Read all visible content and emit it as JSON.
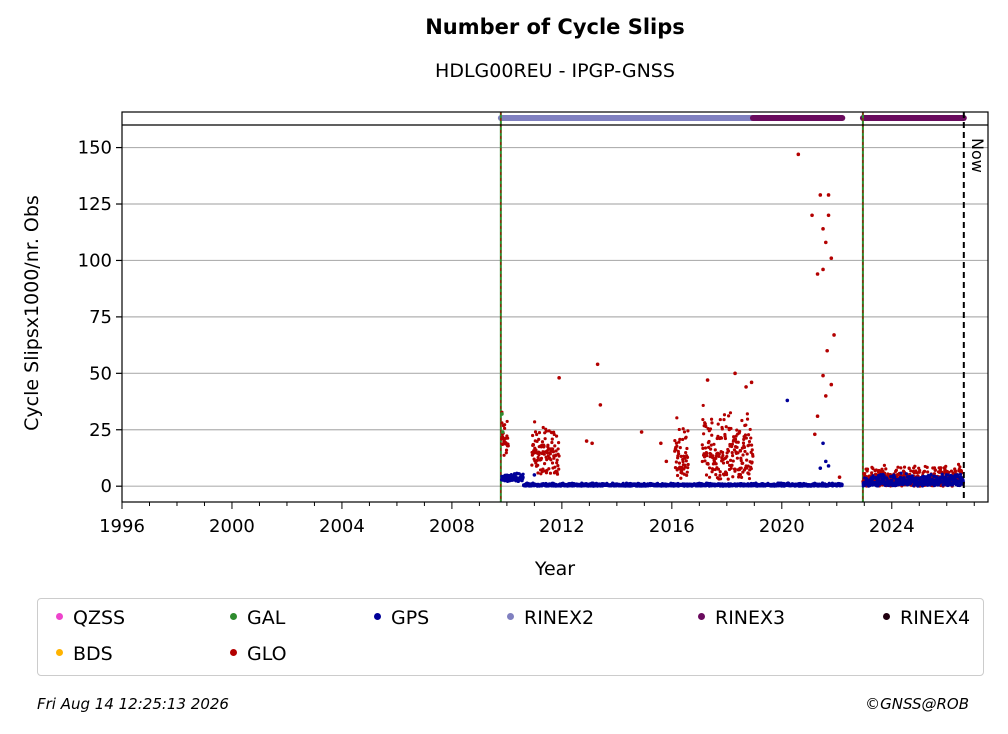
{
  "chart_data": {
    "type": "scatter",
    "title": "Number of Cycle Slips",
    "subtitle": "HDLG00REU - IPGP-GNSS",
    "xlabel": "Year",
    "ylabel": "Cycle Slipsx1000/nr. Obs",
    "xlim": [
      1996,
      2027.5
    ],
    "ylim": [
      -7,
      160
    ],
    "x_ticks": [
      1996,
      2000,
      2004,
      2008,
      2012,
      2016,
      2020,
      2024
    ],
    "y_ticks": [
      0,
      25,
      50,
      75,
      100,
      125,
      150
    ],
    "grid": "horizontal",
    "now_line": {
      "x": 2026.62,
      "label": "Now"
    },
    "event_lines": [
      2009.78,
      2022.95
    ],
    "rinex_bars": [
      {
        "name": "RINEX2",
        "from": 2009.78,
        "to": 2018.95
      },
      {
        "name": "RINEX3",
        "from": 2018.95,
        "to": 2022.2
      },
      {
        "name": "RINEX3",
        "from": 2022.95,
        "to": 2026.62
      }
    ],
    "colors": {
      "QZSS": "#ee44cc",
      "BDS": "#ffb300",
      "GAL": "#2e8b2e",
      "GLO": "#b30000",
      "GPS": "#000099",
      "RINEX2": "#8080c0",
      "RINEX3": "#6a0b5e",
      "RINEX4": "#200010"
    },
    "series": [
      {
        "name": "GLO",
        "segments": [
          {
            "from": 2009.8,
            "to": 2010.05,
            "low": 12,
            "high": 42
          },
          {
            "from": 2010.9,
            "to": 2011.9,
            "low": 5,
            "high": 33
          },
          {
            "from": 2016.1,
            "to": 2016.6,
            "low": 3,
            "high": 32
          },
          {
            "from": 2017.1,
            "to": 2018.95,
            "low": 3,
            "high": 37
          },
          {
            "from": 2022.95,
            "to": 2026.6,
            "low": 0,
            "high": 10
          }
        ],
        "outliers": [
          [
            2011.9,
            48
          ],
          [
            2013.3,
            54
          ],
          [
            2013.4,
            36
          ],
          [
            2012.9,
            20
          ],
          [
            2013.1,
            19
          ],
          [
            2014.9,
            24
          ],
          [
            2015.6,
            19
          ],
          [
            2015.8,
            11
          ],
          [
            2017.3,
            47
          ],
          [
            2018.3,
            50
          ],
          [
            2018.7,
            44
          ],
          [
            2018.9,
            46
          ],
          [
            2020.6,
            147
          ],
          [
            2021.1,
            120
          ],
          [
            2021.3,
            94
          ],
          [
            2021.4,
            129
          ],
          [
            2021.5,
            114
          ],
          [
            2021.5,
            96
          ],
          [
            2021.6,
            108
          ],
          [
            2021.7,
            129
          ],
          [
            2021.7,
            120
          ],
          [
            2021.8,
            101
          ],
          [
            2021.9,
            67
          ],
          [
            2021.5,
            49
          ],
          [
            2021.6,
            40
          ],
          [
            2021.65,
            60
          ],
          [
            2021.3,
            31
          ],
          [
            2021.8,
            45
          ],
          [
            2021.2,
            23
          ],
          [
            2022.1,
            4
          ]
        ]
      },
      {
        "name": "GPS",
        "segments": [
          {
            "from": 2009.8,
            "to": 2010.6,
            "low": 2,
            "high": 6
          },
          {
            "from": 2010.6,
            "to": 2022.2,
            "low": 0,
            "high": 1.5
          },
          {
            "from": 2022.95,
            "to": 2026.6,
            "low": 0,
            "high": 6
          }
        ],
        "outliers": [
          [
            2020.2,
            38
          ],
          [
            2021.5,
            19
          ],
          [
            2021.6,
            11
          ],
          [
            2021.7,
            9
          ],
          [
            2021.4,
            8
          ],
          [
            2011.0,
            5
          ]
        ]
      },
      {
        "name": "GAL",
        "segments": [],
        "outliers": [
          [
            2009.82,
            32
          ],
          [
            2009.85,
            24
          ]
        ]
      }
    ]
  },
  "legend": {
    "items": [
      {
        "label": "QZSS",
        "color": "#ee44cc"
      },
      {
        "label": "GAL",
        "color": "#2e8b2e"
      },
      {
        "label": "GPS",
        "color": "#000099"
      },
      {
        "label": "RINEX2",
        "color": "#8080c0"
      },
      {
        "label": "RINEX3",
        "color": "#6a0b5e"
      },
      {
        "label": "RINEX4",
        "color": "#200010"
      },
      {
        "label": "BDS",
        "color": "#ffb300"
      },
      {
        "label": "GLO",
        "color": "#b30000"
      }
    ]
  },
  "footer": {
    "timestamp": "Fri Aug 14 12:25:13 2026",
    "copyright": "©GNSS@ROB"
  }
}
